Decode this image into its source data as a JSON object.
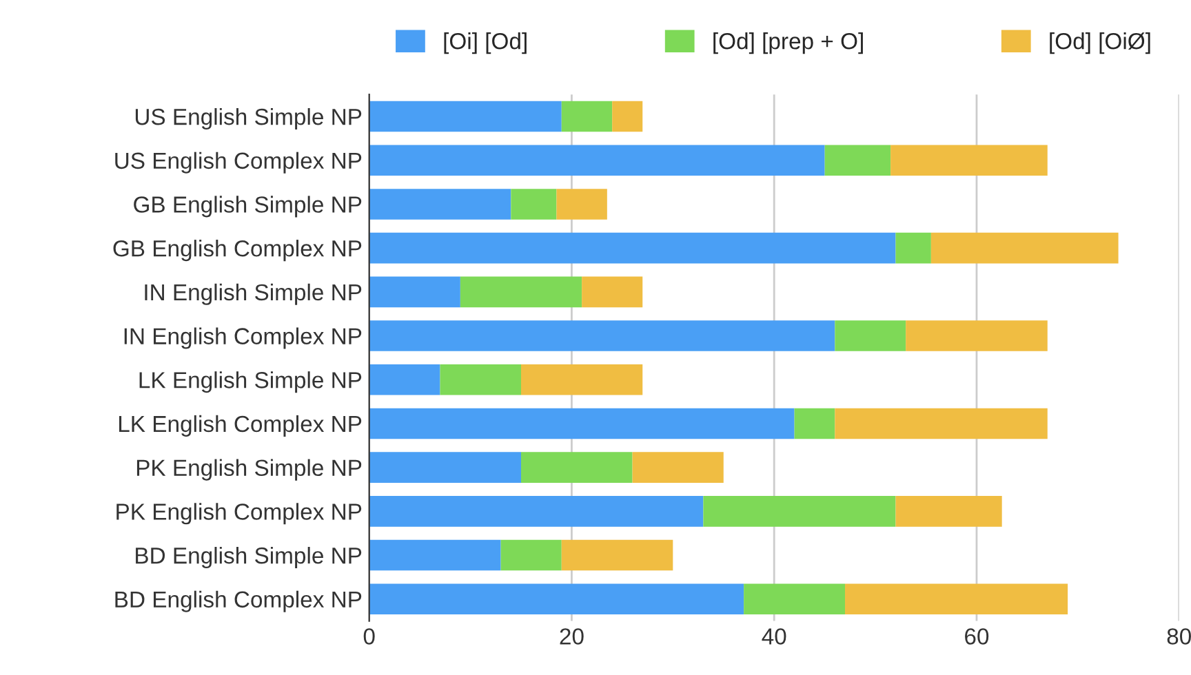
{
  "chart_data": {
    "type": "bar",
    "orientation": "horizontal",
    "stacked": true,
    "categories": [
      "US English Simple NP",
      "US English Complex NP",
      "GB English Simple NP",
      "GB English Complex NP",
      "IN English Simple NP",
      "IN English Complex NP",
      "LK English Simple NP",
      "LK English Complex NP",
      "PK English Simple NP",
      "PK English Complex NP",
      "BD English Simple NP",
      "BD English Complex NP"
    ],
    "series": [
      {
        "name": "[Oi] [Od]",
        "color": "#4a9ff5",
        "values": [
          19,
          45,
          14,
          52,
          9,
          46,
          7,
          42,
          15,
          33,
          13,
          37
        ]
      },
      {
        "name": "[Od] [prep + O]",
        "color": "#7ed957",
        "values": [
          5,
          6.5,
          4.5,
          3.5,
          12,
          7,
          8,
          4,
          11,
          19,
          6,
          10
        ]
      },
      {
        "name": "[Od] [OiØ]",
        "color": "#f0bd42",
        "values": [
          3,
          15.5,
          5,
          18.5,
          6,
          14,
          12,
          21,
          9,
          10.5,
          11,
          22
        ]
      }
    ],
    "xlim": [
      0,
      80
    ],
    "xticks": [
      0,
      20,
      40,
      60,
      80
    ],
    "grid": "x",
    "legend": "top"
  }
}
